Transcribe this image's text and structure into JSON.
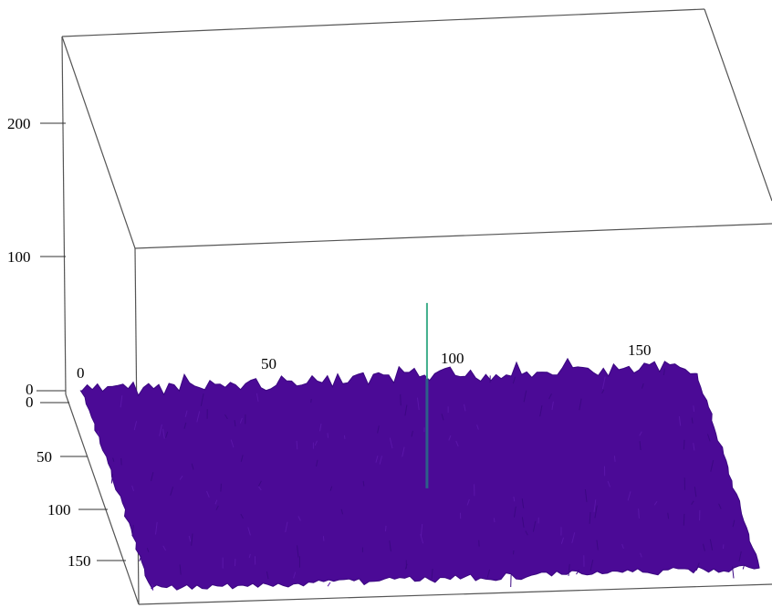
{
  "chart_data": {
    "type": "surface",
    "title": "",
    "axes": {
      "z": {
        "label": "",
        "ticks": [
          "0",
          "100",
          "200"
        ],
        "range": [
          0,
          270
        ]
      },
      "x": {
        "label": "",
        "ticks": [
          "0",
          "50",
          "100",
          "150"
        ],
        "range": [
          0,
          175
        ]
      },
      "y": {
        "label": "",
        "ticks": [
          "0",
          "50",
          "100",
          "150"
        ],
        "range": [
          0,
          175
        ]
      }
    },
    "surface": {
      "baseline_level": 20,
      "noise_amplitude": 8,
      "peak": {
        "x": 88,
        "y": 0,
        "z": 85
      }
    },
    "colors": {
      "surface": "#4b0a96",
      "surface_dark": "#3a0780",
      "peak": "#3fae8a",
      "box": "#555555"
    }
  }
}
